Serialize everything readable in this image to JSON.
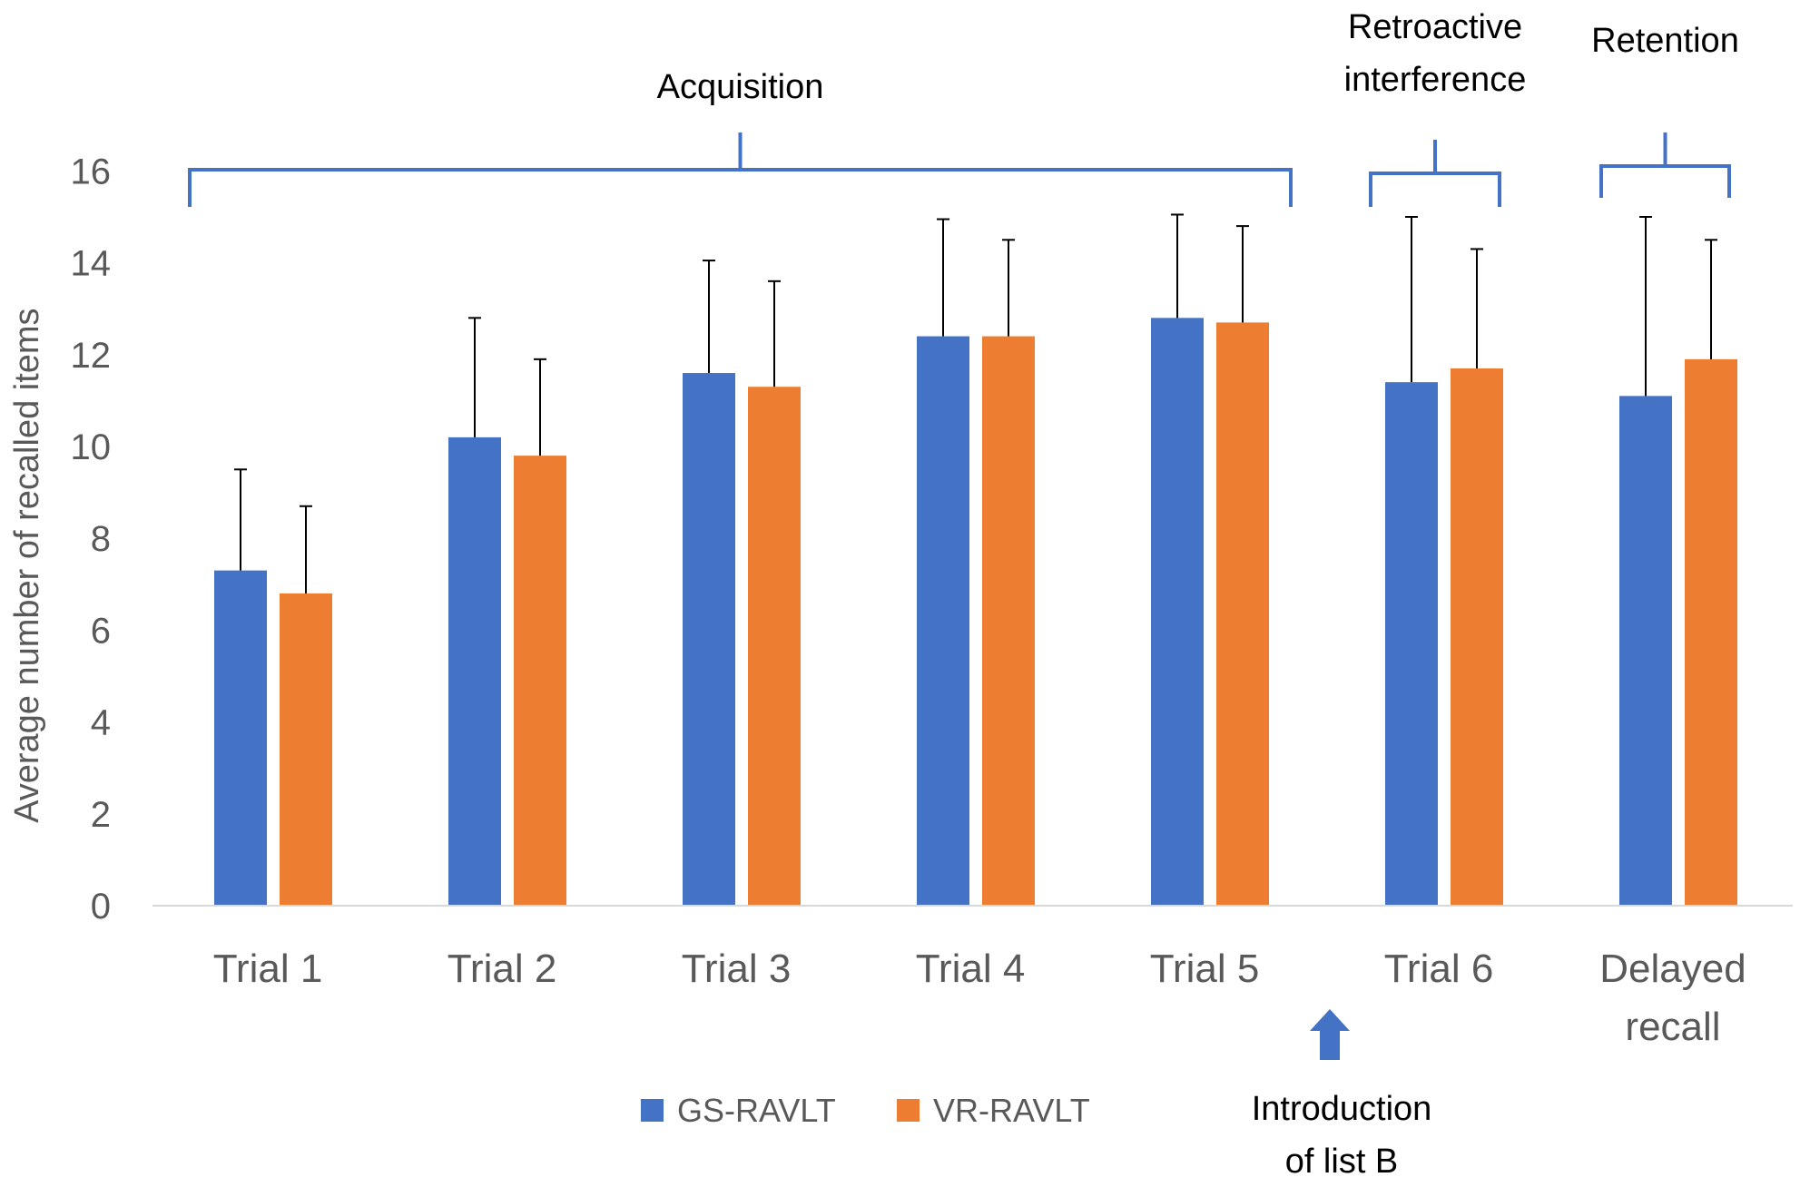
{
  "chart_data": {
    "type": "bar",
    "title": "",
    "xlabel": "",
    "ylabel": "Average number of recalled items",
    "ylim": [
      0,
      16
    ],
    "yticks": [
      0,
      2,
      4,
      6,
      8,
      10,
      12,
      14,
      16
    ],
    "grid": false,
    "categories": [
      [
        "Trial 1"
      ],
      [
        "Trial 2"
      ],
      [
        "Trial 3"
      ],
      [
        "Trial 4"
      ],
      [
        "Trial 5"
      ],
      [
        "Trial 6"
      ],
      [
        "Delayed",
        "recall"
      ]
    ],
    "series": [
      {
        "name": "GS-RAVLT",
        "color": "#4472C4",
        "values": [
          7.3,
          10.2,
          11.6,
          12.4,
          12.8,
          11.4,
          11.1
        ],
        "error_upper": [
          9.5,
          12.8,
          14.05,
          14.95,
          15.05,
          15.0,
          15.0
        ]
      },
      {
        "name": "VR-RAVLT",
        "color": "#ED7D31",
        "values": [
          6.8,
          9.8,
          11.3,
          12.4,
          12.7,
          11.7,
          11.9
        ],
        "error_upper": [
          8.7,
          11.9,
          13.6,
          14.5,
          14.8,
          14.3,
          14.5
        ]
      }
    ],
    "legend_position": "bottom-center",
    "groups": [
      {
        "label": [
          "Acquisition"
        ],
        "from_category": 0,
        "to_category": 4
      },
      {
        "label": [
          "Retroactive",
          "interference"
        ],
        "from_category": 5,
        "to_category": 5
      },
      {
        "label": [
          "Retention"
        ],
        "from_category": 6,
        "to_category": 6
      }
    ],
    "bracket_color": "#4472C4",
    "annotation": {
      "label": [
        "Introduction",
        "of list B"
      ],
      "between_categories": [
        4,
        5
      ],
      "marker_color": "#4472C4"
    },
    "axis_color": "#D9D9D9",
    "error_bar_color": "#000000"
  }
}
